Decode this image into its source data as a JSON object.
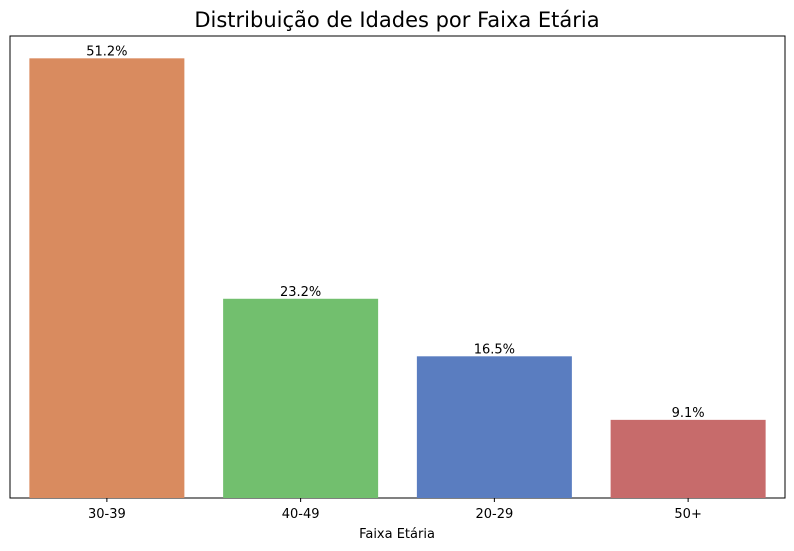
{
  "chart_data": {
    "type": "bar",
    "title": "Distribuição de Idades por Faixa Etária",
    "xlabel": "Faixa Etária",
    "ylabel": "",
    "categories": [
      "30-39",
      "40-49",
      "20-29",
      "50+"
    ],
    "values": [
      51.2,
      23.2,
      16.5,
      9.1
    ],
    "value_labels": [
      "51.2%",
      "23.2%",
      "16.5%",
      "9.1%"
    ],
    "value_unit": "%",
    "ylim": [
      0,
      53.8
    ],
    "y_axis_visible": false,
    "grid": false,
    "colors": [
      "#d98b5f",
      "#72bf6e",
      "#5a7dc0",
      "#c76b6b"
    ]
  }
}
